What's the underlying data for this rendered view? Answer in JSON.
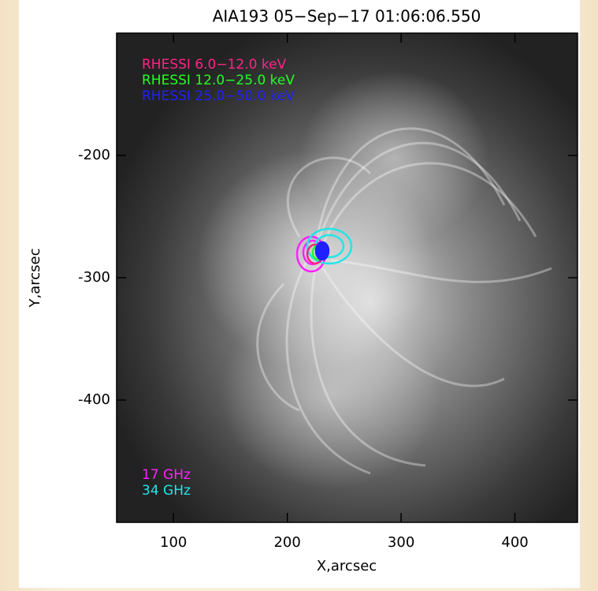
{
  "chart_data": {
    "type": "image",
    "title": "AIA193 05−Sep−17 01:06:06.550",
    "x_label": "X,arcsec",
    "y_label": "Y,arcsec",
    "xlim": [
      50,
      455
    ],
    "ylim": [
      -500,
      -100
    ],
    "xticks": [
      100,
      200,
      300,
      400
    ],
    "yticks": [
      -200,
      -300,
      -400
    ],
    "series": [
      {
        "name": "RHESSI 6.0−12.0 keV",
        "color": "#ff2288"
      },
      {
        "name": "RHESSI 12.0−25.0 keV",
        "color": "#22ff22"
      },
      {
        "name": "RHESSI 25.0−50.0 keV",
        "color": "#2020ff"
      },
      {
        "name": "17 GHz",
        "color": "#ff22ff"
      },
      {
        "name": "34 GHz",
        "color": "#22e6e6"
      }
    ]
  }
}
